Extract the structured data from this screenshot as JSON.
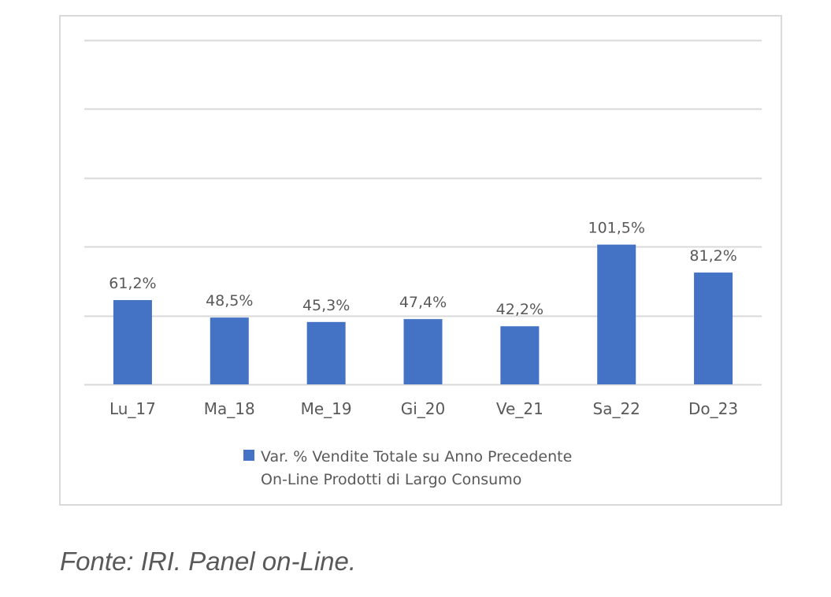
{
  "chart_data": {
    "type": "bar",
    "categories": [
      "Lu_17",
      "Ma_18",
      "Me_19",
      "Gi_20",
      "Ve_21",
      "Sa_22",
      "Do_23"
    ],
    "series": [
      {
        "name": "Var. % Vendite Totale su Anno Precedente On-Line Prodotti di Largo Consumo",
        "values": [
          61.2,
          48.5,
          45.3,
          47.4,
          42.2,
          101.5,
          81.2
        ]
      }
    ],
    "data_labels": [
      "61,2%",
      "48,5%",
      "45,3%",
      "47,4%",
      "42,2%",
      "101,5%",
      "81,2%"
    ],
    "ylim": [
      0,
      250
    ],
    "grid": true,
    "y_tick_labels_visible": false,
    "legend_position": "bottom",
    "colors": {
      "bar": "#4472c4",
      "gridline": "#d9d9d9",
      "text": "#595959"
    }
  },
  "legend": {
    "line1": "Var. % Vendite Totale su Anno Precedente",
    "line2": "On-Line Prodotti di Largo Consumo"
  },
  "source": "Fonte: IRI. Panel on-Line."
}
